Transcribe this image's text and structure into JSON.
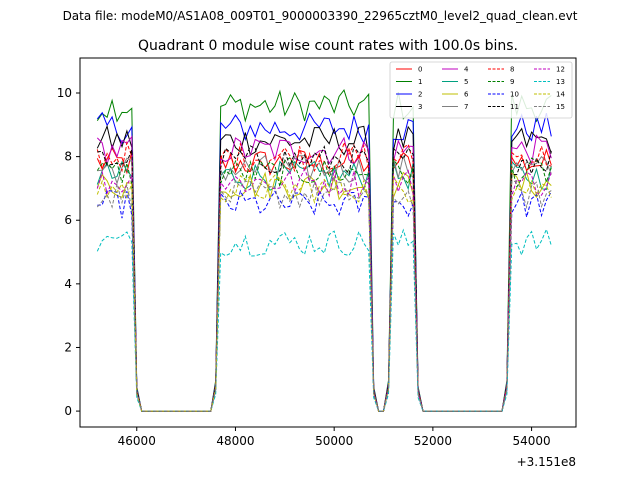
{
  "suptitle": "Data file: modeM0/AS1A08_009T01_9000003390_22965cztM0_level2_quad_clean.evt",
  "chart_data": {
    "type": "line",
    "title": "Quadrant 0 module wise count rates with 100.0s bins.",
    "xlabel": "",
    "ylabel": "",
    "x_offset_label": "+3.151e8",
    "xlim": [
      44850,
      54900
    ],
    "ylim": [
      -0.5,
      11.1
    ],
    "xticks": [
      46000,
      48000,
      50000,
      52000,
      54000
    ],
    "xtick_labels": [
      "46000",
      "48000",
      "50000",
      "52000",
      "54000"
    ],
    "yticks": [
      0,
      2,
      4,
      6,
      8,
      10
    ],
    "ytick_labels": [
      "0",
      "2",
      "4",
      "6",
      "8",
      "10"
    ],
    "legend_position": "upper right",
    "segments": [
      {
        "start": 45200,
        "end": 46000
      },
      {
        "start": 47600,
        "end": 50800
      },
      {
        "start": 51100,
        "end": 51700
      },
      {
        "start": 53500,
        "end": 54400
      }
    ],
    "series": [
      {
        "name": "0",
        "color": "#ff0000",
        "dash": "solid",
        "level": 7.8
      },
      {
        "name": "1",
        "color": "#008000",
        "dash": "solid",
        "level": 9.6
      },
      {
        "name": "2",
        "color": "#0000ff",
        "dash": "solid",
        "level": 8.9
      },
      {
        "name": "3",
        "color": "#000000",
        "dash": "solid",
        "level": 8.5
      },
      {
        "name": "4",
        "color": "#bf00bf",
        "dash": "solid",
        "level": 8.2
      },
      {
        "name": "5",
        "color": "#00a080",
        "dash": "solid",
        "level": 7.4
      },
      {
        "name": "6",
        "color": "#bfbf00",
        "dash": "solid",
        "level": 7.1
      },
      {
        "name": "7",
        "color": "#808080",
        "dash": "solid",
        "level": 7.6
      },
      {
        "name": "8",
        "color": "#ff0000",
        "dash": "dashed",
        "level": 8.0
      },
      {
        "name": "9",
        "color": "#008000",
        "dash": "dashed",
        "level": 7.5
      },
      {
        "name": "10",
        "color": "#0000ff",
        "dash": "dashed",
        "level": 6.5
      },
      {
        "name": "11",
        "color": "#000000",
        "dash": "dashed",
        "level": 7.9
      },
      {
        "name": "12",
        "color": "#bf00bf",
        "dash": "dashed",
        "level": 7.2
      },
      {
        "name": "13",
        "color": "#00bfbf",
        "dash": "dashed",
        "level": 5.3
      },
      {
        "name": "14",
        "color": "#bfbf00",
        "dash": "dashed",
        "level": 7.0
      },
      {
        "name": "15",
        "color": "#808080",
        "dash": "dashed",
        "level": 6.8
      }
    ]
  }
}
